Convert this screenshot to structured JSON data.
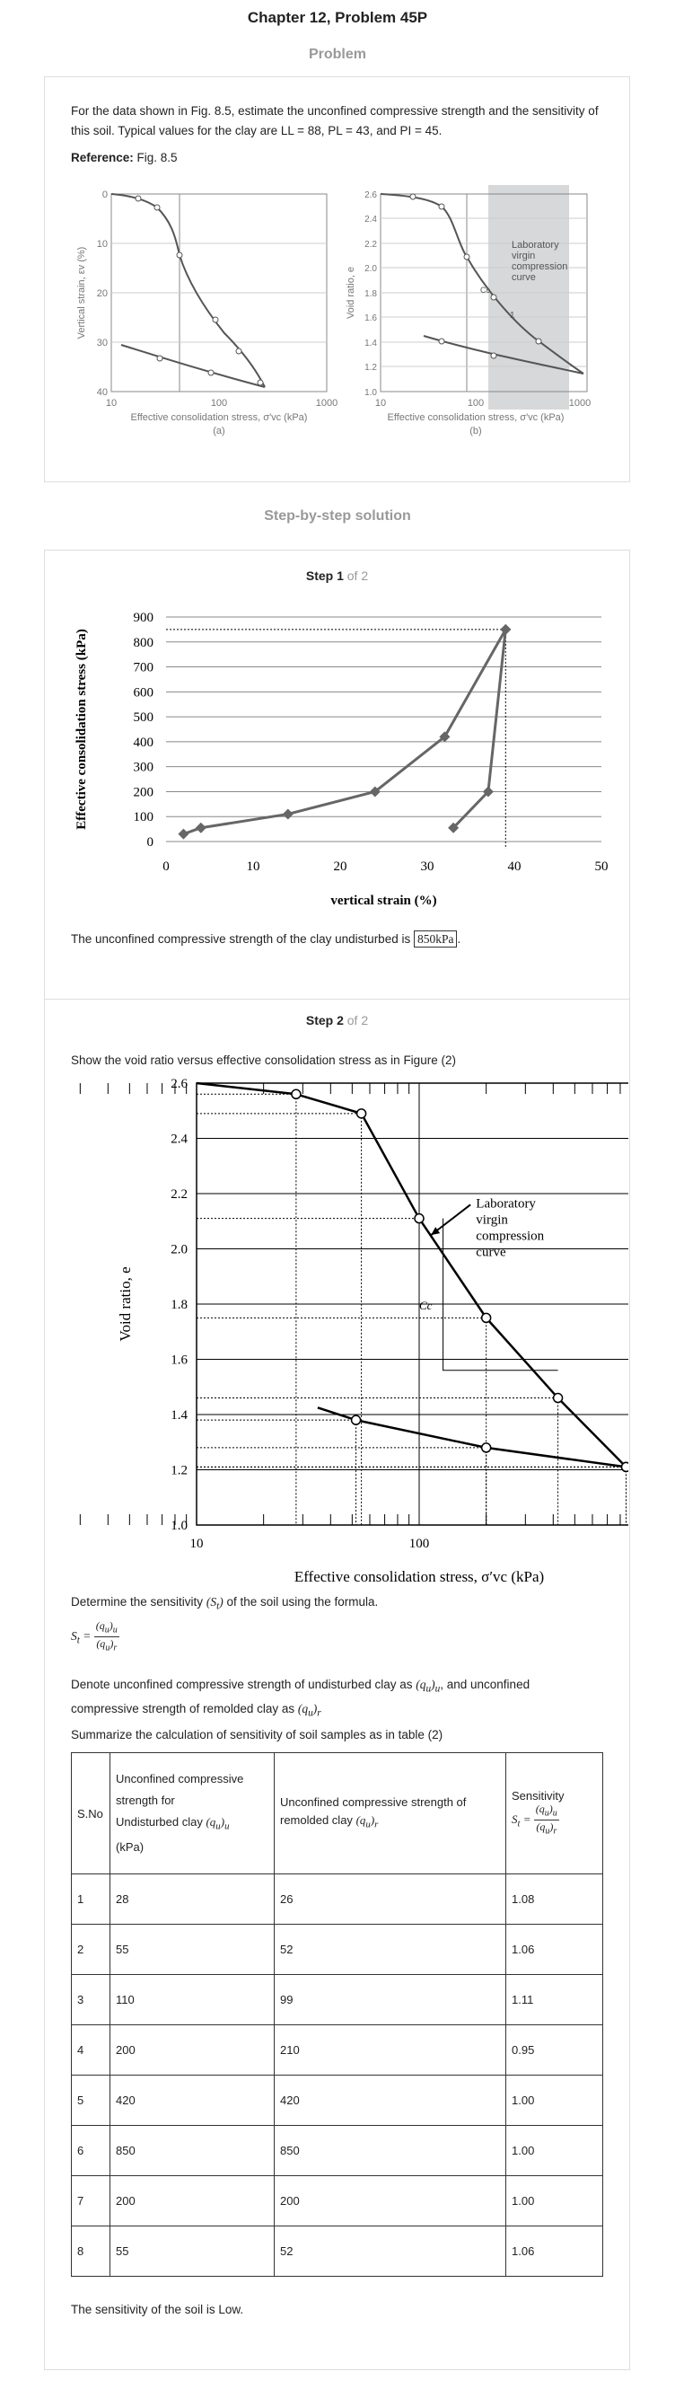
{
  "header": {
    "title": "Chapter 12, Problem 45P",
    "problem_label": "Problem",
    "solution_label": "Step-by-step solution"
  },
  "problem": {
    "text": "For the data shown in Fig. 8.5, estimate the unconfined compressive strength and the sensitivity of this soil. Typical values for the clay are LL = 88, PL = 43, and PI = 45.",
    "reference_label": "Reference:",
    "reference_value": " Fig. 8.5",
    "fig_a": {
      "ylabel": "Vertical strain, εv (%)",
      "xlabel": "Effective consolidation stress, σ′vc (kPa)",
      "caption": "(a)",
      "yticks": [
        "0",
        "10",
        "20",
        "30",
        "40"
      ],
      "xticks": [
        "10",
        "100",
        "1000"
      ]
    },
    "fig_b": {
      "ylabel": "Void ratio, e",
      "xlabel": "Effective consolidation stress, σ′vc (kPa)",
      "caption": "(b)",
      "yticks": [
        "2.6",
        "2.4",
        "2.2",
        "2.0",
        "1.8",
        "1.6",
        "1.4",
        "1.2",
        "1.0"
      ],
      "xticks": [
        "10",
        "100",
        "1000"
      ],
      "annotation": [
        "Laboratory",
        "virgin",
        "compression",
        "curve"
      ],
      "cc": "Cc",
      "one": "1"
    }
  },
  "step1": {
    "label": "Step 1",
    "of": " of 2",
    "result_text": "The unconfined compressive strength of the clay undisturbed is ",
    "result_value": "850kPa",
    "result_end": "."
  },
  "step2": {
    "label": "Step 2",
    "of": " of 2",
    "intro": "Show the void ratio versus effective consolidation stress as in Figure (2)",
    "determine": "Determine the sensitivity",
    "determine_end": " of the soil using the formula.",
    "denote_1": "Denote unconfined compressive strength of undisturbed clay as",
    "denote_2": ", and unconfined",
    "denote_3": "compressive strength of remolded clay as",
    "summarize": "Summarize the calculation of sensitivity of soil samples as in table (2)",
    "conclusion": "The sensitivity of the soil is Low."
  },
  "chart_data": [
    {
      "type": "line",
      "title": "",
      "xlabel": "vertical strain (%)",
      "ylabel": "Effective consolidation stress (kPa)",
      "xlim": [
        0,
        50
      ],
      "ylim": [
        0,
        900
      ],
      "x_ticks": [
        "0",
        "10",
        "20",
        "30",
        "40",
        "50"
      ],
      "y_ticks": [
        "0",
        "100",
        "200",
        "300",
        "400",
        "500",
        "600",
        "700",
        "800",
        "900"
      ],
      "series": [
        {
          "x": [
            2,
            4,
            14,
            24,
            32,
            39
          ],
          "y": [
            30,
            55,
            110,
            200,
            420,
            850
          ]
        },
        {
          "x": [
            33,
            37,
            39
          ],
          "y": [
            55,
            200,
            850
          ]
        }
      ],
      "reference_lines": {
        "y": 850,
        "x": 39
      }
    },
    {
      "type": "line",
      "title": "",
      "xlabel": "Effective consolidation stress, σ′vc (kPa)",
      "ylabel": "Void ratio, e",
      "log_x": true,
      "xlim": [
        10,
        1000
      ],
      "ylim": [
        1.0,
        2.6
      ],
      "x_ticks": [
        "10",
        "100",
        "1000"
      ],
      "y_ticks": [
        "1.0",
        "1.2",
        "1.4",
        "1.6",
        "1.8",
        "2.0",
        "2.2",
        "2.4",
        "2.6"
      ],
      "annotation": [
        "Laboratory",
        "virgin",
        "compression",
        "curve"
      ],
      "cc_label": "Cc",
      "series": [
        {
          "x": [
            28,
            55,
            100,
            200,
            420,
            850
          ],
          "y": [
            2.56,
            2.49,
            2.11,
            1.75,
            1.46,
            1.21
          ]
        },
        {
          "x": [
            850,
            200,
            52
          ],
          "y": [
            1.21,
            1.28,
            1.38
          ]
        }
      ]
    }
  ],
  "table": {
    "headers": {
      "col1": "S.No",
      "col2_lines": [
        "Unconfined compressive",
        "strength for",
        "Undisturbed clay"
      ],
      "col2_unit": "(kPa)",
      "col3": "Unconfined compressive strength of remolded clay",
      "col4": "Sensitivity"
    },
    "rows": [
      {
        "sno": "1",
        "undisturbed": "28",
        "remolded": "26",
        "sensitivity": "1.08"
      },
      {
        "sno": "2",
        "undisturbed": "55",
        "remolded": "52",
        "sensitivity": "1.06"
      },
      {
        "sno": "3",
        "undisturbed": "110",
        "remolded": "99",
        "sensitivity": "1.11"
      },
      {
        "sno": "4",
        "undisturbed": "200",
        "remolded": "210",
        "sensitivity": "0.95"
      },
      {
        "sno": "5",
        "undisturbed": "420",
        "remolded": "420",
        "sensitivity": "1.00"
      },
      {
        "sno": "6",
        "undisturbed": "850",
        "remolded": "850",
        "sensitivity": "1.00"
      },
      {
        "sno": "7",
        "undisturbed": "200",
        "remolded": "200",
        "sensitivity": "1.00"
      },
      {
        "sno": "8",
        "undisturbed": "55",
        "remolded": "52",
        "sensitivity": "1.06"
      }
    ]
  }
}
